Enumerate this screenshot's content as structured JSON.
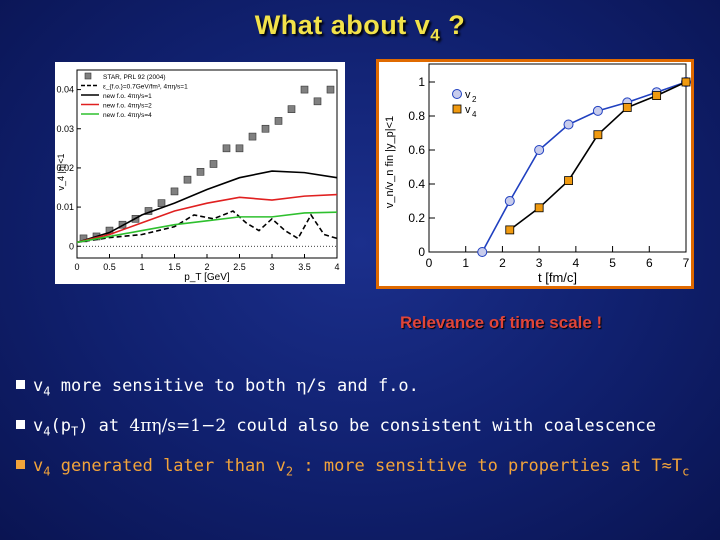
{
  "slide": {
    "title_main": "What about v",
    "title_sub": "4",
    "title_tail": " ?",
    "relevance": "Relevance of time scale !",
    "bullets": {
      "b1_a": "v",
      "b1_sub": "4",
      "b1_b": " more sensitive to both ",
      "b1_eta": "η",
      "b1_c": "/s and f.o.",
      "b2_a": "v",
      "b2_sub": "4",
      "b2_b": "(p",
      "b2_sub2": "T",
      "b2_c": ") at ",
      "b2_formula": "4πη/s=1−2",
      "b2_d": " could also be consistent with coalescence",
      "b3_a": "v",
      "b3_sub": "4",
      "b3_b": " generated later than v",
      "b3_sub2": "2",
      "b3_c": " : more sensitive to properties at T≈T",
      "b3_sub3": "c"
    }
  },
  "chart_data": [
    {
      "type": "line",
      "xlabel": "p_T [GeV]",
      "ylabel": "v_4 |η|<1",
      "xlim": [
        0,
        4
      ],
      "ylim": [
        -0.003,
        0.045
      ],
      "xticks": [
        "0",
        "0.5",
        "1",
        "1.5",
        "2",
        "2.5",
        "3",
        "3.5",
        "4"
      ],
      "yticks": [
        "0",
        "0.01",
        "0.02",
        "0.03",
        "0.04"
      ],
      "legend_position": "top-left",
      "series": [
        {
          "name": "STAR, PRL 92 (2004)",
          "style": "scatter-square",
          "color": "#808080",
          "x": [
            0.1,
            0.3,
            0.5,
            0.7,
            0.9,
            1.1,
            1.3,
            1.5,
            1.7,
            1.9,
            2.1,
            2.3,
            2.5,
            2.7,
            2.9,
            3.1,
            3.3,
            3.5,
            3.7,
            3.9
          ],
          "y": [
            0.002,
            0.0025,
            0.004,
            0.0055,
            0.007,
            0.009,
            0.011,
            0.014,
            0.017,
            0.019,
            0.021,
            0.025,
            0.025,
            0.028,
            0.03,
            0.032,
            0.035,
            0.04,
            0.037,
            0.04
          ]
        },
        {
          "name": "ε_{f.o.}=0.7GeV/fm³, 4πη/s=1",
          "style": "dashed",
          "color": "#000000",
          "x": [
            0,
            0.5,
            1.0,
            1.5,
            1.8,
            2.1,
            2.4,
            2.6,
            2.8,
            3.0,
            3.2,
            3.4,
            3.6,
            3.8,
            4.0
          ],
          "y": [
            0.001,
            0.0022,
            0.003,
            0.005,
            0.008,
            0.007,
            0.009,
            0.006,
            0.004,
            0.007,
            0.004,
            0.002,
            0.008,
            0.003,
            0.002
          ]
        },
        {
          "name": "new f.o. 4πη/s=1",
          "style": "solid",
          "color": "#000000",
          "x": [
            0,
            0.5,
            1.0,
            1.5,
            2.0,
            2.5,
            3.0,
            3.5,
            4.0
          ],
          "y": [
            0.001,
            0.0035,
            0.008,
            0.011,
            0.0145,
            0.0175,
            0.0192,
            0.0188,
            0.0175
          ]
        },
        {
          "name": "new f.o. 4πη/s=2",
          "style": "solid",
          "color": "#e02020",
          "x": [
            0,
            0.5,
            1.0,
            1.5,
            2.0,
            2.5,
            3.0,
            3.5,
            4.0
          ],
          "y": [
            0.001,
            0.003,
            0.006,
            0.009,
            0.011,
            0.0125,
            0.0118,
            0.0128,
            0.0132
          ]
        },
        {
          "name": "new f.o. 4πη/s=4",
          "style": "solid",
          "color": "#2ec02e",
          "x": [
            0,
            0.5,
            1.0,
            1.5,
            2.0,
            2.5,
            3.0,
            3.5,
            4.0
          ],
          "y": [
            0.001,
            0.0025,
            0.004,
            0.0055,
            0.0065,
            0.0075,
            0.0075,
            0.0085,
            0.0087
          ]
        }
      ]
    },
    {
      "type": "line",
      "xlabel": "t [fm/c]",
      "ylabel": "v_n/v_n fin  |y_p|<1",
      "xlim": [
        0,
        7
      ],
      "ylim": [
        0,
        1
      ],
      "xticks": [
        "0",
        "1",
        "2",
        "3",
        "4",
        "5",
        "6",
        "7"
      ],
      "yticks": [
        "0",
        "0.2",
        "0.4",
        "0.6",
        "0.8",
        "1"
      ],
      "legend_position": "top-left",
      "series": [
        {
          "name": "v",
          "name_sub": "2",
          "marker": "circle",
          "color": "#2040c0",
          "marker_fill": "#c8ccec",
          "x": [
            1.45,
            2.2,
            3.0,
            3.8,
            4.6,
            5.4,
            6.2,
            7.0
          ],
          "y": [
            0.0,
            0.3,
            0.6,
            0.75,
            0.83,
            0.88,
            0.94,
            1.0
          ]
        },
        {
          "name": "v",
          "name_sub": "4",
          "marker": "square",
          "color": "#000000",
          "marker_fill": "#f09a10",
          "x": [
            2.2,
            3.0,
            3.8,
            4.6,
            5.4,
            6.2,
            7.0
          ],
          "y": [
            0.13,
            0.26,
            0.42,
            0.69,
            0.85,
            0.92,
            1.0
          ]
        }
      ]
    }
  ]
}
